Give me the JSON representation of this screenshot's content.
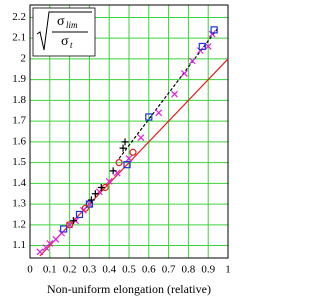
{
  "chart_data": {
    "type": "scatter",
    "x_label": "Non-uniform elongation (relative)",
    "formula": {
      "numerator": "σ",
      "numerator_sub": "lim",
      "denominator": "σ",
      "denominator_sub": "t"
    },
    "xlim": [
      0,
      1
    ],
    "xticks": [
      0,
      0.1,
      0.2,
      0.3,
      0.4,
      0.5,
      0.6,
      0.7,
      0.8,
      0.9,
      1
    ],
    "ylim": [
      1.04,
      2.26
    ],
    "yticks": [
      1.1,
      1.2,
      1.3,
      1.4,
      1.5,
      1.6,
      1.7,
      1.8,
      1.9,
      2,
      2.1,
      2.2
    ],
    "grid": true,
    "series": [
      {
        "marker": "line",
        "color": "#e02020",
        "x": [
          0.05,
          1
        ],
        "values": [
          1.05,
          2.0
        ]
      },
      {
        "marker": "dashed",
        "color": "#000000",
        "x": [
          0.45,
          0.95
        ],
        "values": [
          1.52,
          2.15
        ]
      },
      {
        "marker": "x",
        "color": "#e020e0",
        "x": [
          0.05,
          0.08,
          0.1,
          0.13,
          0.16,
          0.2,
          0.23,
          0.27,
          0.3,
          0.35,
          0.4,
          0.44,
          0.5,
          0.56,
          0.65,
          0.73,
          0.78,
          0.82,
          0.86,
          0.9,
          0.92
        ],
        "values": [
          1.07,
          1.09,
          1.11,
          1.13,
          1.16,
          1.2,
          1.22,
          1.27,
          1.3,
          1.36,
          1.41,
          1.45,
          1.52,
          1.62,
          1.74,
          1.83,
          1.93,
          1.99,
          2.04,
          2.06,
          2.12
        ]
      },
      {
        "marker": "square",
        "color": "#2030e0",
        "x": [
          0.17,
          0.25,
          0.3,
          0.49,
          0.6,
          0.87,
          0.93
        ],
        "values": [
          1.18,
          1.25,
          1.3,
          1.49,
          1.72,
          2.06,
          2.14
        ]
      },
      {
        "marker": "circle",
        "color": "#e02020",
        "x": [
          0.2,
          0.28,
          0.38,
          0.45,
          0.52
        ],
        "values": [
          1.2,
          1.28,
          1.38,
          1.5,
          1.55
        ]
      },
      {
        "marker": "plus",
        "color": "#000000",
        "x": [
          0.22,
          0.31,
          0.33,
          0.36,
          0.42,
          0.47,
          0.48
        ],
        "values": [
          1.22,
          1.32,
          1.35,
          1.38,
          1.46,
          1.57,
          1.6
        ]
      }
    ]
  }
}
